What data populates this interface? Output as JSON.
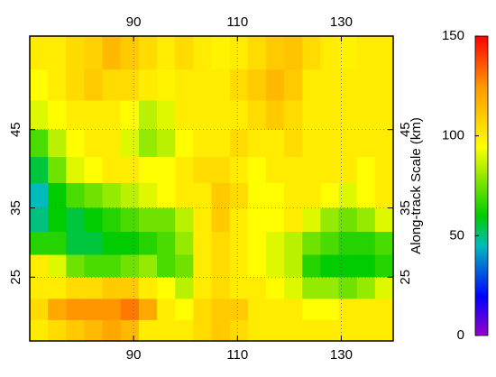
{
  "chart_data": {
    "type": "heatmap",
    "xlim": [
      70,
      140
    ],
    "ylim": [
      15,
      55
    ],
    "xticks": [
      90,
      110,
      130
    ],
    "yticks": [
      25,
      35,
      45
    ],
    "grid": true,
    "colorbar": {
      "label": "Along-track Scale (km)",
      "lim": [
        0,
        150
      ],
      "ticks": [
        0,
        50,
        100,
        150
      ]
    },
    "values": [
      [
        100,
        100,
        105,
        108,
        115,
        110,
        105,
        100,
        105,
        100,
        98,
        100,
        105,
        110,
        112,
        105,
        100,
        98,
        100,
        100
      ],
      [
        95,
        100,
        105,
        110,
        105,
        105,
        100,
        98,
        100,
        100,
        100,
        105,
        110,
        115,
        110,
        100,
        100,
        100,
        100,
        100
      ],
      [
        90,
        95,
        100,
        100,
        100,
        95,
        85,
        90,
        100,
        100,
        100,
        100,
        105,
        110,
        105,
        100,
        100,
        100,
        100,
        100
      ],
      [
        70,
        85,
        95,
        100,
        100,
        90,
        80,
        85,
        95,
        100,
        100,
        105,
        100,
        100,
        105,
        100,
        100,
        100,
        100,
        100
      ],
      [
        55,
        75,
        90,
        95,
        100,
        100,
        95,
        95,
        100,
        105,
        105,
        100,
        95,
        100,
        100,
        100,
        100,
        100,
        95,
        100
      ],
      [
        45,
        60,
        70,
        75,
        80,
        85,
        90,
        95,
        100,
        100,
        110,
        105,
        95,
        95,
        100,
        100,
        95,
        90,
        95,
        100
      ],
      [
        50,
        60,
        55,
        60,
        65,
        70,
        75,
        75,
        85,
        100,
        110,
        100,
        95,
        95,
        100,
        90,
        80,
        75,
        80,
        90
      ],
      [
        65,
        65,
        55,
        55,
        60,
        60,
        65,
        70,
        80,
        100,
        105,
        100,
        95,
        90,
        85,
        75,
        70,
        65,
        65,
        70
      ],
      [
        100,
        90,
        75,
        70,
        70,
        75,
        80,
        70,
        75,
        100,
        105,
        100,
        95,
        90,
        85,
        65,
        60,
        60,
        60,
        65
      ],
      [
        100,
        100,
        105,
        105,
        110,
        110,
        100,
        95,
        85,
        100,
        105,
        100,
        100,
        95,
        90,
        80,
        80,
        75,
        80,
        90
      ],
      [
        105,
        120,
        125,
        125,
        125,
        130,
        120,
        100,
        95,
        105,
        110,
        110,
        100,
        100,
        100,
        95,
        95,
        100,
        100,
        100
      ],
      [
        100,
        105,
        110,
        115,
        120,
        115,
        100,
        100,
        100,
        105,
        110,
        105,
        100,
        100,
        100,
        100,
        100,
        100,
        100,
        100
      ]
    ]
  }
}
